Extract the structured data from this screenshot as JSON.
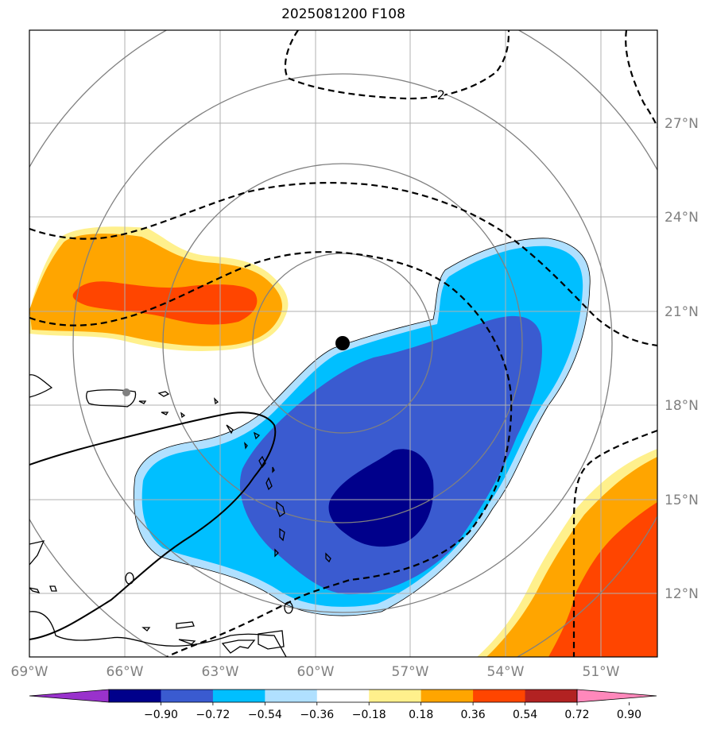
{
  "title": "2025081200 F108",
  "map": {
    "longitude_ticks": [
      "69°W",
      "66°W",
      "63°W",
      "60°W",
      "57°W",
      "54°W",
      "51°W"
    ],
    "latitude_ticks": [
      "27°N",
      "24°N",
      "21°N",
      "18°N",
      "15°N",
      "12°N"
    ],
    "contour_label": "2",
    "colors": {
      "tick_label": "#808080",
      "grid": "#b0b0b0",
      "range_rings": "#808080",
      "coastline": "#000000",
      "center_marker": "#000000",
      "station_marker": "#808080"
    }
  },
  "colorbar": {
    "ticks": [
      "−0.90",
      "−0.72",
      "−0.54",
      "−0.36",
      "−0.18",
      "0.18",
      "0.36",
      "0.54",
      "0.72",
      "0.90"
    ],
    "colors": [
      "#9932cc",
      "#00008b",
      "#3a5bd0",
      "#00bfff",
      "#b0e0ff",
      "#ffffff",
      "#fff08c",
      "#ffa500",
      "#ff4500",
      "#b22222",
      "#ff88bb"
    ]
  }
}
